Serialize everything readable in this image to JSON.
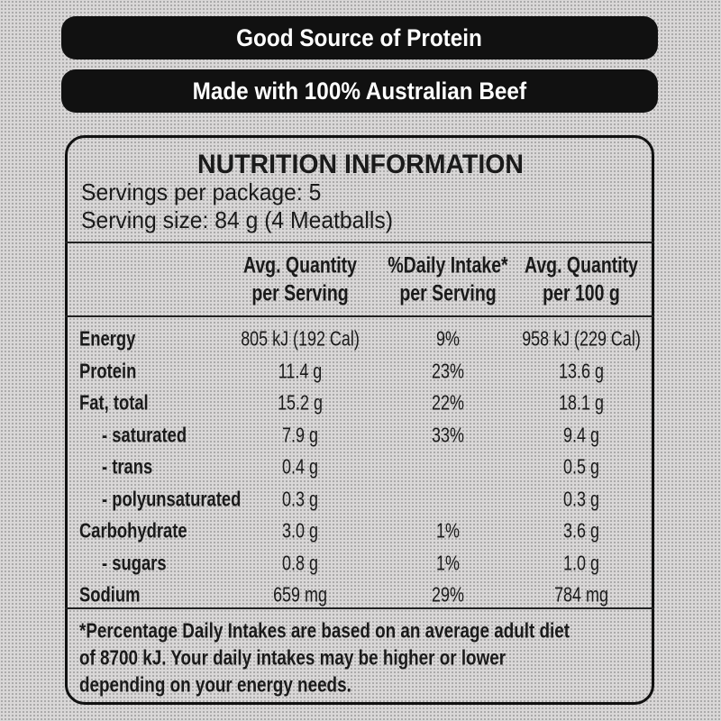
{
  "banners": [
    "Good Source of Protein",
    "Made with 100% Australian Beef"
  ],
  "panel": {
    "title": "NUTRITION INFORMATION",
    "servings": [
      "Servings per package: 5",
      "Serving size: 84 g (4 Meatballs)"
    ],
    "table": {
      "header": [
        [
          "Avg. Quantity",
          "per Serving"
        ],
        [
          "%Daily Intake*",
          "per Serving"
        ],
        [
          "Avg. Quantity",
          "per 100 g"
        ]
      ],
      "rows": [
        {
          "label": "Energy",
          "per_serving": "805 kJ (192 Cal)",
          "daily_intake": "9%",
          "per_100g": "958 kJ (229 Cal)"
        },
        {
          "label": "Protein",
          "per_serving": "11.4 g",
          "daily_intake": "23%",
          "per_100g": "13.6 g"
        },
        {
          "label": "Fat, total",
          "per_serving": "15.2 g",
          "daily_intake": "22%",
          "per_100g": "18.1 g"
        },
        {
          "label": "- saturated",
          "per_serving": "7.9 g",
          "daily_intake": "33%",
          "per_100g": "9.4 g"
        },
        {
          "label": "- trans",
          "per_serving": "0.4 g",
          "per_100g": "0.5 g"
        },
        {
          "label": "- polyunsaturated",
          "per_serving": "0.3 g",
          "per_100g": "0.3 g"
        },
        {
          "label": "Carbohydrate",
          "per_serving": "3.0 g",
          "daily_intake": "1%",
          "per_100g": "3.6 g"
        },
        {
          "label": "- sugars",
          "per_serving": "0.8 g",
          "daily_intake": "1%",
          "per_100g": "1.0 g"
        },
        {
          "label": "Sodium",
          "per_serving": "659 mg",
          "daily_intake": "29%",
          "per_100g": "784 mg"
        }
      ]
    },
    "footnote": [
      "*Percentage Daily Intakes are based on an average adult diet",
      "of 8700 kJ. Your daily intakes may be higher or lower",
      "depending on your energy needs."
    ]
  }
}
